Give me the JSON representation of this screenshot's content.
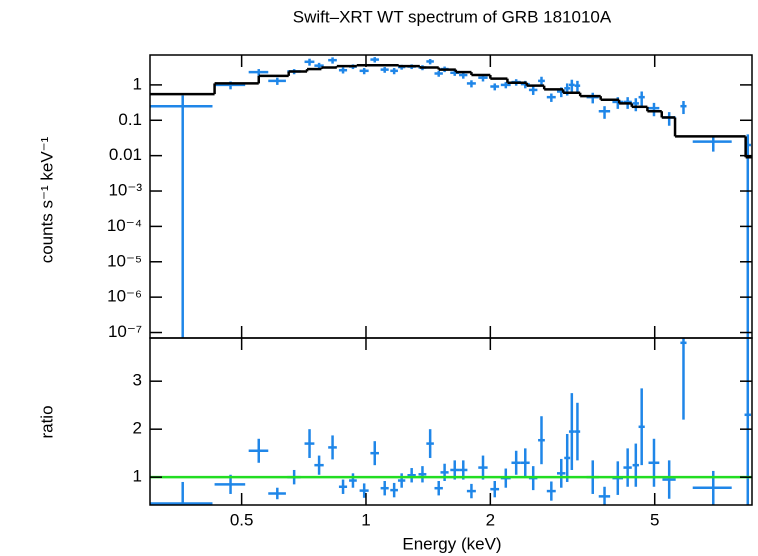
{
  "chart_data": [
    {
      "type": "errorbar",
      "title": "Swift–XRT WT spectrum of GRB 181010A",
      "ylabel": "counts s⁻¹ keV⁻¹",
      "log_x": true,
      "log_y": true,
      "xlim": [
        0.3,
        8.6
      ],
      "ylim": [
        7e-08,
        7
      ],
      "yticks": [
        1,
        0.1,
        0.01,
        {
          "value": 0.001,
          "label": "10⁻³"
        },
        {
          "value": 0.0001,
          "label": "10⁻⁴"
        },
        {
          "value": 1e-05,
          "label": "10⁻⁵"
        },
        {
          "value": 1e-06,
          "label": "10⁻⁶"
        },
        {
          "value": 1e-07,
          "label": "10⁻⁷"
        }
      ],
      "color": "#1f86e8",
      "x": [
        0.36,
        0.47,
        0.55,
        0.61,
        0.67,
        0.73,
        0.77,
        0.83,
        0.88,
        0.93,
        0.99,
        1.05,
        1.11,
        1.17,
        1.22,
        1.29,
        1.37,
        1.43,
        1.5,
        1.55,
        1.64,
        1.72,
        1.8,
        1.92,
        2.05,
        2.18,
        2.31,
        2.43,
        2.54,
        2.66,
        2.81,
        2.97,
        3.07,
        3.15,
        3.25,
        3.54,
        3.78,
        4.07,
        4.3,
        4.5,
        4.65,
        4.98,
        5.42,
        5.87,
        6.93,
        8.4
      ],
      "xerr": [
        0.065,
        0.04,
        0.03,
        0.03,
        0.025,
        0.02,
        0.02,
        0.02,
        0.02,
        0.02,
        0.025,
        0.025,
        0.025,
        0.025,
        0.025,
        0.03,
        0.03,
        0.03,
        0.035,
        0.035,
        0.04,
        0.04,
        0.045,
        0.05,
        0.05,
        0.06,
        0.06,
        0.06,
        0.06,
        0.05,
        0.07,
        0.07,
        0.05,
        0.05,
        0.05,
        0.12,
        0.12,
        0.12,
        0.1,
        0.08,
        0.08,
        0.15,
        0.2,
        0.1,
        0.75,
        0.15
      ],
      "values": [
        0.25,
        1.0,
        2.3,
        1.3,
        2.4,
        4.5,
        3.5,
        5.0,
        2.6,
        3.3,
        2.5,
        5.2,
        2.7,
        2.5,
        3.2,
        3.3,
        3.1,
        4.6,
        2.1,
        2.8,
        2.2,
        1.9,
        1.1,
        1.6,
        0.9,
        1.0,
        1.2,
        1.05,
        0.72,
        1.3,
        0.45,
        0.65,
        0.8,
        1.0,
        0.95,
        0.45,
        0.18,
        0.33,
        0.33,
        0.3,
        0.45,
        0.22,
        0.12,
        0.25,
        0.025,
        0.02
      ],
      "yerr": [
        0.25,
        0.25,
        0.5,
        0.3,
        0.4,
        1.0,
        0.7,
        1.0,
        0.5,
        0.5,
        0.5,
        0.9,
        0.5,
        0.5,
        0.5,
        0.5,
        0.5,
        0.8,
        0.4,
        0.5,
        0.4,
        0.4,
        0.25,
        0.35,
        0.2,
        0.2,
        0.25,
        0.25,
        0.2,
        0.4,
        0.12,
        0.2,
        0.3,
        0.4,
        0.35,
        0.15,
        0.07,
        0.12,
        0.12,
        0.12,
        0.2,
        0.09,
        0.05,
        0.1,
        0.012,
        0.02
      ],
      "model": {
        "color": "#000000",
        "edges": [
          0.3,
          0.43,
          0.55,
          0.65,
          0.72,
          0.78,
          0.85,
          0.95,
          1.2,
          1.35,
          1.5,
          1.65,
          1.8,
          2.0,
          2.2,
          2.45,
          2.7,
          3.0,
          3.3,
          3.7,
          4.1,
          4.4,
          4.8,
          5.2,
          5.6,
          8.3,
          8.6
        ],
        "values": [
          0.55,
          1.1,
          1.8,
          2.4,
          2.8,
          3.1,
          3.4,
          3.6,
          3.4,
          3.1,
          2.7,
          2.3,
          1.9,
          1.5,
          1.15,
          0.95,
          0.75,
          0.6,
          0.48,
          0.38,
          0.3,
          0.24,
          0.18,
          0.12,
          0.035,
          0.009
        ]
      }
    },
    {
      "type": "errorbar",
      "ylabel": "ratio",
      "xlabel": "Energy (keV)",
      "log_x": true,
      "log_y": false,
      "xlim": [
        0.3,
        8.6
      ],
      "ylim": [
        0.42,
        3.9
      ],
      "xticks": [
        0.5,
        1,
        2,
        5
      ],
      "yticks": [
        1,
        2,
        3
      ],
      "color": "#1f86e8",
      "reference": {
        "value": 1,
        "color": "#22dd22"
      },
      "x": [
        0.36,
        0.47,
        0.55,
        0.61,
        0.67,
        0.73,
        0.77,
        0.83,
        0.88,
        0.93,
        0.99,
        1.05,
        1.11,
        1.17,
        1.22,
        1.29,
        1.37,
        1.43,
        1.5,
        1.55,
        1.64,
        1.72,
        1.8,
        1.92,
        2.05,
        2.18,
        2.31,
        2.43,
        2.54,
        2.66,
        2.81,
        2.97,
        3.07,
        3.15,
        3.25,
        3.54,
        3.78,
        4.07,
        4.3,
        4.5,
        4.65,
        4.98,
        5.42,
        5.87,
        6.93,
        8.4
      ],
      "xerr": [
        0.065,
        0.04,
        0.03,
        0.03,
        0.025,
        0.02,
        0.02,
        0.02,
        0.02,
        0.02,
        0.025,
        0.025,
        0.025,
        0.025,
        0.025,
        0.03,
        0.03,
        0.03,
        0.035,
        0.035,
        0.04,
        0.04,
        0.045,
        0.05,
        0.05,
        0.06,
        0.06,
        0.06,
        0.06,
        0.05,
        0.07,
        0.07,
        0.05,
        0.05,
        0.05,
        0.12,
        0.12,
        0.12,
        0.1,
        0.08,
        0.08,
        0.15,
        0.2,
        0.1,
        0.75,
        0.15
      ],
      "values": [
        0.45,
        0.85,
        1.55,
        0.66,
        1.0,
        1.7,
        1.25,
        1.62,
        0.8,
        0.93,
        0.72,
        1.5,
        0.77,
        0.73,
        0.93,
        1.04,
        1.06,
        1.7,
        0.77,
        1.1,
        1.15,
        1.15,
        0.71,
        1.2,
        0.75,
        0.98,
        1.3,
        1.3,
        0.98,
        1.77,
        0.71,
        1.08,
        1.4,
        1.95,
        1.95,
        1.0,
        0.6,
        0.98,
        1.2,
        1.25,
        2.05,
        1.3,
        0.95,
        3.8,
        0.78,
        2.3
      ],
      "yerr": [
        0.45,
        0.2,
        0.25,
        0.12,
        0.15,
        0.3,
        0.2,
        0.25,
        0.15,
        0.15,
        0.15,
        0.25,
        0.15,
        0.15,
        0.15,
        0.15,
        0.17,
        0.3,
        0.15,
        0.18,
        0.2,
        0.2,
        0.15,
        0.25,
        0.17,
        0.2,
        0.25,
        0.3,
        0.25,
        0.5,
        0.2,
        0.3,
        0.5,
        0.8,
        0.6,
        0.35,
        0.2,
        0.35,
        0.4,
        0.45,
        0.8,
        0.5,
        0.4,
        1.6,
        0.35,
        2.3
      ]
    }
  ]
}
